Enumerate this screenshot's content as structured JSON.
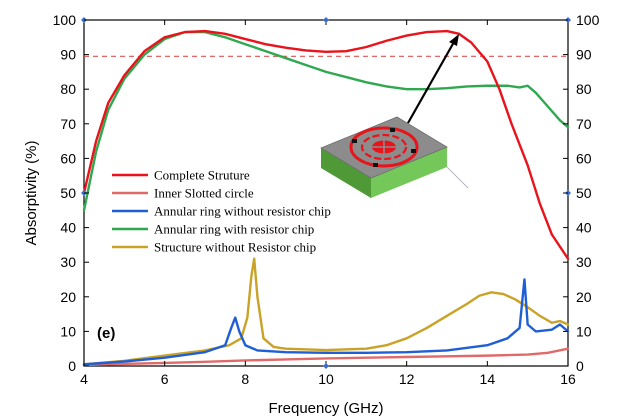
{
  "chart_data": {
    "type": "line",
    "title": "",
    "xlabel": "Frequency (GHz)",
    "ylabel": "Absorptivity (%)",
    "xlim": [
      4,
      16
    ],
    "ylim": [
      0,
      100
    ],
    "xticks": [
      4,
      6,
      8,
      10,
      12,
      14,
      16
    ],
    "yticks": [
      0,
      10,
      20,
      30,
      40,
      50,
      60,
      70,
      80,
      90,
      100
    ],
    "reference_line": {
      "y": 89.5,
      "color": "#e05050",
      "style": "dashed"
    },
    "panel_label": "(e)",
    "grid": false,
    "legend_position": "center-left",
    "series": [
      {
        "name": "Complete Struture",
        "color": "#e8131b",
        "points": [
          [
            4,
            50
          ],
          [
            4.3,
            65
          ],
          [
            4.6,
            76
          ],
          [
            5,
            84
          ],
          [
            5.5,
            91
          ],
          [
            6,
            95
          ],
          [
            6.5,
            96.5
          ],
          [
            7,
            96.8
          ],
          [
            7.5,
            96
          ],
          [
            8,
            94.5
          ],
          [
            8.5,
            93
          ],
          [
            9,
            92
          ],
          [
            9.5,
            91.2
          ],
          [
            10,
            90.8
          ],
          [
            10.5,
            91
          ],
          [
            11,
            92.2
          ],
          [
            11.5,
            94
          ],
          [
            12,
            95.5
          ],
          [
            12.5,
            96.5
          ],
          [
            13,
            96.8
          ],
          [
            13.3,
            96
          ],
          [
            13.6,
            93.5
          ],
          [
            14,
            88
          ],
          [
            14.3,
            80
          ],
          [
            14.6,
            70
          ],
          [
            15,
            58
          ],
          [
            15.3,
            47
          ],
          [
            15.6,
            38
          ],
          [
            16,
            31
          ]
        ]
      },
      {
        "name": "Inner Slotted circle",
        "color": "#e06a6a",
        "points": [
          [
            4,
            0.3
          ],
          [
            5,
            0.6
          ],
          [
            6,
            0.9
          ],
          [
            7,
            1.2
          ],
          [
            8,
            1.6
          ],
          [
            9,
            1.9
          ],
          [
            10,
            2.2
          ],
          [
            11,
            2.4
          ],
          [
            12,
            2.6
          ],
          [
            13,
            2.8
          ],
          [
            14,
            3
          ],
          [
            15,
            3.3
          ],
          [
            15.5,
            3.8
          ],
          [
            16,
            5
          ]
        ]
      },
      {
        "name": "Annular ring without resistor chip",
        "color": "#1f5fd6",
        "points": [
          [
            4,
            0.5
          ],
          [
            5,
            1.3
          ],
          [
            6,
            2.4
          ],
          [
            7,
            4
          ],
          [
            7.5,
            6
          ],
          [
            7.65,
            11
          ],
          [
            7.75,
            14
          ],
          [
            7.85,
            10
          ],
          [
            8,
            6
          ],
          [
            8.3,
            4.5
          ],
          [
            9,
            4
          ],
          [
            10,
            3.8
          ],
          [
            11,
            3.8
          ],
          [
            12,
            4
          ],
          [
            13,
            4.5
          ],
          [
            14,
            6
          ],
          [
            14.5,
            8
          ],
          [
            14.8,
            11
          ],
          [
            14.92,
            25
          ],
          [
            15,
            12
          ],
          [
            15.2,
            10
          ],
          [
            15.6,
            10.5
          ],
          [
            15.8,
            12
          ],
          [
            16,
            10
          ]
        ]
      },
      {
        "name": "Annular ring with resistor chip",
        "color": "#2fa84f",
        "points": [
          [
            4,
            45
          ],
          [
            4.3,
            62
          ],
          [
            4.6,
            74
          ],
          [
            5,
            83
          ],
          [
            5.5,
            90
          ],
          [
            6,
            94.5
          ],
          [
            6.5,
            96.5
          ],
          [
            7,
            96.5
          ],
          [
            7.5,
            95
          ],
          [
            8,
            93
          ],
          [
            8.5,
            91
          ],
          [
            9,
            89
          ],
          [
            9.5,
            87
          ],
          [
            10,
            85
          ],
          [
            10.5,
            83.5
          ],
          [
            11,
            82
          ],
          [
            11.5,
            80.8
          ],
          [
            12,
            80
          ],
          [
            12.5,
            80
          ],
          [
            13,
            80.3
          ],
          [
            13.5,
            80.8
          ],
          [
            14,
            81
          ],
          [
            14.5,
            81
          ],
          [
            14.8,
            80.5
          ],
          [
            15,
            81
          ],
          [
            15.2,
            79
          ],
          [
            15.5,
            75
          ],
          [
            15.8,
            71
          ],
          [
            16,
            69
          ]
        ]
      },
      {
        "name": "Structure without Resistor chip",
        "color": "#c9a227",
        "points": [
          [
            4,
            0.5
          ],
          [
            5,
            1.5
          ],
          [
            6,
            3
          ],
          [
            7,
            4.5
          ],
          [
            7.6,
            6
          ],
          [
            7.9,
            8
          ],
          [
            8.05,
            14
          ],
          [
            8.15,
            26
          ],
          [
            8.22,
            31
          ],
          [
            8.3,
            20
          ],
          [
            8.45,
            8
          ],
          [
            8.7,
            5.5
          ],
          [
            9,
            5
          ],
          [
            10,
            4.6
          ],
          [
            11,
            5
          ],
          [
            11.5,
            6
          ],
          [
            12,
            8
          ],
          [
            12.5,
            11
          ],
          [
            13,
            14.5
          ],
          [
            13.5,
            18
          ],
          [
            13.8,
            20.3
          ],
          [
            14.1,
            21.3
          ],
          [
            14.4,
            20.8
          ],
          [
            14.7,
            19.2
          ],
          [
            15,
            17
          ],
          [
            15.3,
            14.5
          ],
          [
            15.6,
            12.5
          ],
          [
            15.8,
            13
          ],
          [
            16,
            12
          ]
        ]
      }
    ]
  },
  "colors": {
    "inset_top": "#8c8c8c",
    "inset_side": "#5fb845",
    "inset_ring": "#e8131b",
    "arrow": "#000000"
  }
}
